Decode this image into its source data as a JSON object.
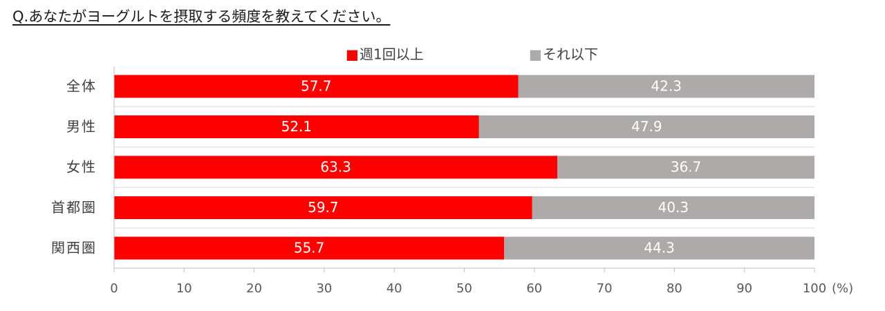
{
  "title": "Q.あなたがヨーグルトを摂取する頻度を教えてください。",
  "chart_data": {
    "type": "bar",
    "orientation": "horizontal",
    "stacked": true,
    "title": "Q.あなたがヨーグルトを摂取する頻度を教えてください。",
    "categories": [
      "全体",
      "男性",
      "女性",
      "首都圏",
      "関西圏"
    ],
    "series": [
      {
        "name": "週1回以上",
        "color": "#ff0000",
        "values": [
          57.7,
          52.1,
          63.3,
          59.7,
          55.7
        ]
      },
      {
        "name": "それ以下",
        "color": "#aeaaaa",
        "values": [
          42.3,
          47.9,
          36.7,
          40.3,
          44.3
        ]
      }
    ],
    "legend_marker": "■",
    "xlim": [
      0,
      100
    ],
    "xticks": [
      0,
      10,
      20,
      30,
      40,
      50,
      60,
      70,
      80,
      90,
      100
    ],
    "x_unit": "(%)",
    "grid": false,
    "legend_position": "top"
  }
}
